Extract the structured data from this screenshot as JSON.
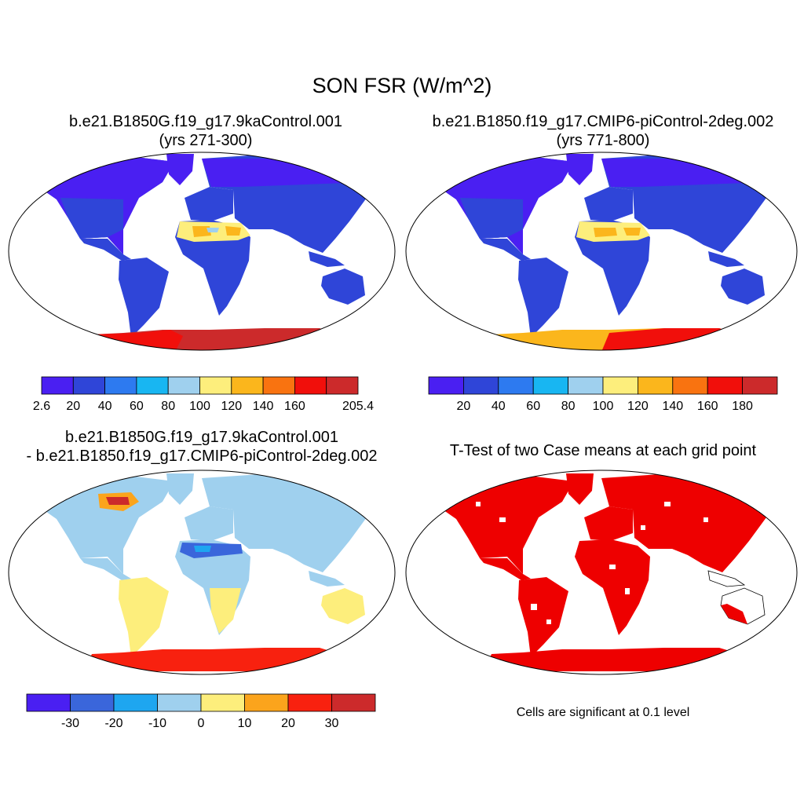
{
  "title": "SON FSR (W/m^2)",
  "panels": [
    {
      "title_line1": "b.e21.B1850G.f19_g17.9kaControl.001",
      "title_line2": "(yrs 271-300)"
    },
    {
      "title_line1": "b.e21.B1850.f19_g17.CMIP6-piControl-2deg.002",
      "title_line2": "(yrs 771-800)"
    },
    {
      "title_line1": "b.e21.B1850G.f19_g17.9kaControl.001",
      "title_line2": "- b.e21.B1850.f19_g17.CMIP6-piControl-2deg.002"
    },
    {
      "title_line1": "T-Test of two Case means at each grid point"
    }
  ],
  "signif_note": "Cells are significant at 0.1 level",
  "colorbars": [
    {
      "labels": [
        "2.6",
        "20",
        "40",
        "60",
        "80",
        "100",
        "120",
        "140",
        "160",
        "205.4"
      ],
      "colors": [
        "#4a1ff2",
        "#2f45d8",
        "#2d7af0",
        "#18b6f2",
        "#9fd0ee",
        "#fdee7c",
        "#fbb61c",
        "#f97310",
        "#f10f0b",
        "#cc2a2b"
      ]
    },
    {
      "labels": [
        "20",
        "40",
        "60",
        "80",
        "100",
        "120",
        "140",
        "160",
        "180"
      ],
      "colors": [
        "#4a1ff2",
        "#2f45d8",
        "#2d7af0",
        "#18b6f2",
        "#9fd0ee",
        "#fdee7c",
        "#fbb61c",
        "#f97310",
        "#f10f0b",
        "#cc2a2b"
      ]
    },
    {
      "labels": [
        "-30",
        "-20",
        "-10",
        "0",
        "10",
        "20",
        "30"
      ],
      "colors": [
        "#4a1ff2",
        "#3a66db",
        "#1ea6f0",
        "#9fd0ee",
        "#fdee7c",
        "#fba41c",
        "#f8210f",
        "#cc2a2b"
      ]
    }
  ],
  "map_colors": {
    "land_low": "#2f45d8",
    "land_mid": "#4a1ff2",
    "desert": "#fdee7c",
    "desert_hot": "#fbb61c",
    "ice_p1": "#cc2a2b",
    "ice_p2": "#fbb61c",
    "diff_base": "#9fd0ee",
    "diff_pos": "#fdee7c",
    "diff_ice": "#f8210f",
    "signif": "#ee0000"
  }
}
